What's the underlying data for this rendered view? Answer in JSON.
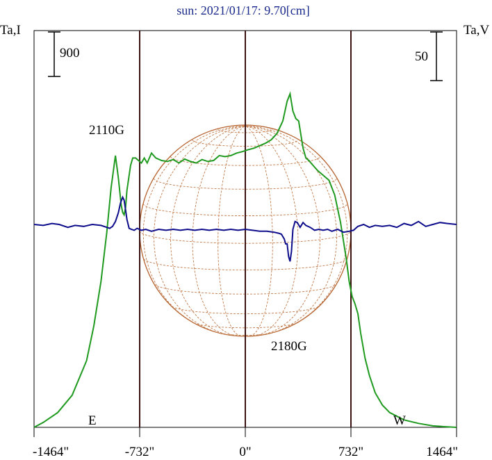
{
  "chart_data": {
    "type": "line",
    "title": "sun: 2021/01/17: 9.70[cm]",
    "y_left_label": "Ta,I",
    "y_right_label": "Ta,V",
    "scale_left_value": "900",
    "scale_right_value": "50",
    "xlim": [
      -1464,
      1464
    ],
    "x_ticks": [
      -1464,
      -732,
      0,
      732,
      1464
    ],
    "x_tick_labels": [
      "-1464\"",
      "-732\"",
      "0\"",
      "732\"",
      "1464\""
    ],
    "limb_markers": [
      {
        "label": "E",
        "x": -732
      },
      {
        "label": "W",
        "x": 732
      }
    ],
    "annotations": [
      {
        "text": "2110G",
        "x": -830
      },
      {
        "text": "2180G",
        "x": 260
      }
    ],
    "solar_disk_radius": 732,
    "colors": {
      "intensity": "#1f9a1f",
      "polarization": "#0d0d8c",
      "disk": "#b5622e",
      "grid": "#c07a4a",
      "lines": "#3a1010",
      "title": "#1a2a8c"
    },
    "series": [
      {
        "name": "I",
        "color": "#1f9a1f",
        "x": [
          -1464,
          -1400,
          -1300,
          -1200,
          -1100,
          -1050,
          -1000,
          -960,
          -930,
          -900,
          -880,
          -860,
          -850,
          -840,
          -830,
          -820,
          -810,
          -795,
          -780,
          -760,
          -740,
          -720,
          -700,
          -680,
          -650,
          -620,
          -580,
          -540,
          -500,
          -460,
          -420,
          -380,
          -340,
          -300,
          -260,
          -220,
          -180,
          -140,
          -100,
          -60,
          -20,
          20,
          60,
          100,
          140,
          180,
          220,
          260,
          290,
          310,
          330,
          350,
          370,
          400,
          420,
          440,
          470,
          500,
          540,
          580,
          620,
          660,
          700,
          720,
          740,
          760,
          780,
          800,
          830,
          860,
          900,
          950,
          1000,
          1100,
          1200,
          1300,
          1400,
          1464
        ],
        "y": [
          0,
          100,
          300,
          650,
          1350,
          2050,
          2950,
          3950,
          4850,
          5500,
          5050,
          4500,
          4350,
          4300,
          4450,
          4800,
          5000,
          5300,
          5450,
          5450,
          5400,
          5350,
          5450,
          5350,
          5550,
          5450,
          5400,
          5380,
          5420,
          5350,
          5430,
          5380,
          5350,
          5420,
          5380,
          5400,
          5500,
          5480,
          5500,
          5550,
          5580,
          5620,
          5650,
          5700,
          5750,
          5820,
          5950,
          6200,
          6600,
          6750,
          6400,
          6250,
          6200,
          5650,
          5450,
          5400,
          5300,
          5200,
          5100,
          5000,
          4700,
          4150,
          3400,
          2950,
          2650,
          2500,
          2300,
          1900,
          1400,
          1050,
          700,
          450,
          300,
          150,
          80,
          30,
          10,
          0
        ]
      },
      {
        "name": "V",
        "color": "#0d0d8c",
        "x": [
          -1464,
          -1400,
          -1340,
          -1290,
          -1230,
          -1180,
          -1120,
          -1060,
          -1000,
          -960,
          -940,
          -920,
          -900,
          -880,
          -865,
          -850,
          -840,
          -830,
          -820,
          -805,
          -790,
          -770,
          -750,
          -720,
          -690,
          -650,
          -600,
          -550,
          -500,
          -450,
          -400,
          -350,
          -300,
          -250,
          -200,
          -150,
          -100,
          -50,
          0,
          50,
          100,
          150,
          200,
          230,
          250,
          270,
          280,
          290,
          300,
          310,
          320,
          330,
          345,
          360,
          380,
          400,
          420,
          450,
          480,
          510,
          540,
          570,
          600,
          640,
          680,
          720,
          750,
          780,
          820,
          860,
          900,
          950,
          1000,
          1050,
          1100,
          1150,
          1200,
          1250,
          1300,
          1350,
          1400,
          1464
        ],
        "y": [
          0,
          -1,
          1,
          0,
          -3,
          -1,
          -2,
          0,
          -1,
          -3,
          -4,
          -2,
          3,
          12,
          22,
          28,
          25,
          15,
          5,
          -4,
          -5,
          -6,
          -4,
          -6,
          -5,
          -7,
          -5,
          -6,
          -5,
          -6,
          -5,
          -6,
          -5,
          -6,
          -5,
          -6,
          -5,
          -6,
          -5,
          -6,
          -7,
          -7,
          -8,
          -9,
          -10,
          -15,
          -20,
          -20,
          -33,
          -38,
          -28,
          -5,
          3,
          2,
          -3,
          2,
          -1,
          -3,
          -6,
          -5,
          -6,
          -5,
          -7,
          -5,
          -8,
          -7,
          -6,
          -2,
          0,
          -3,
          -1,
          -2,
          -1,
          -3,
          1,
          -1,
          3,
          -2,
          0,
          2,
          1,
          0
        ]
      }
    ]
  }
}
